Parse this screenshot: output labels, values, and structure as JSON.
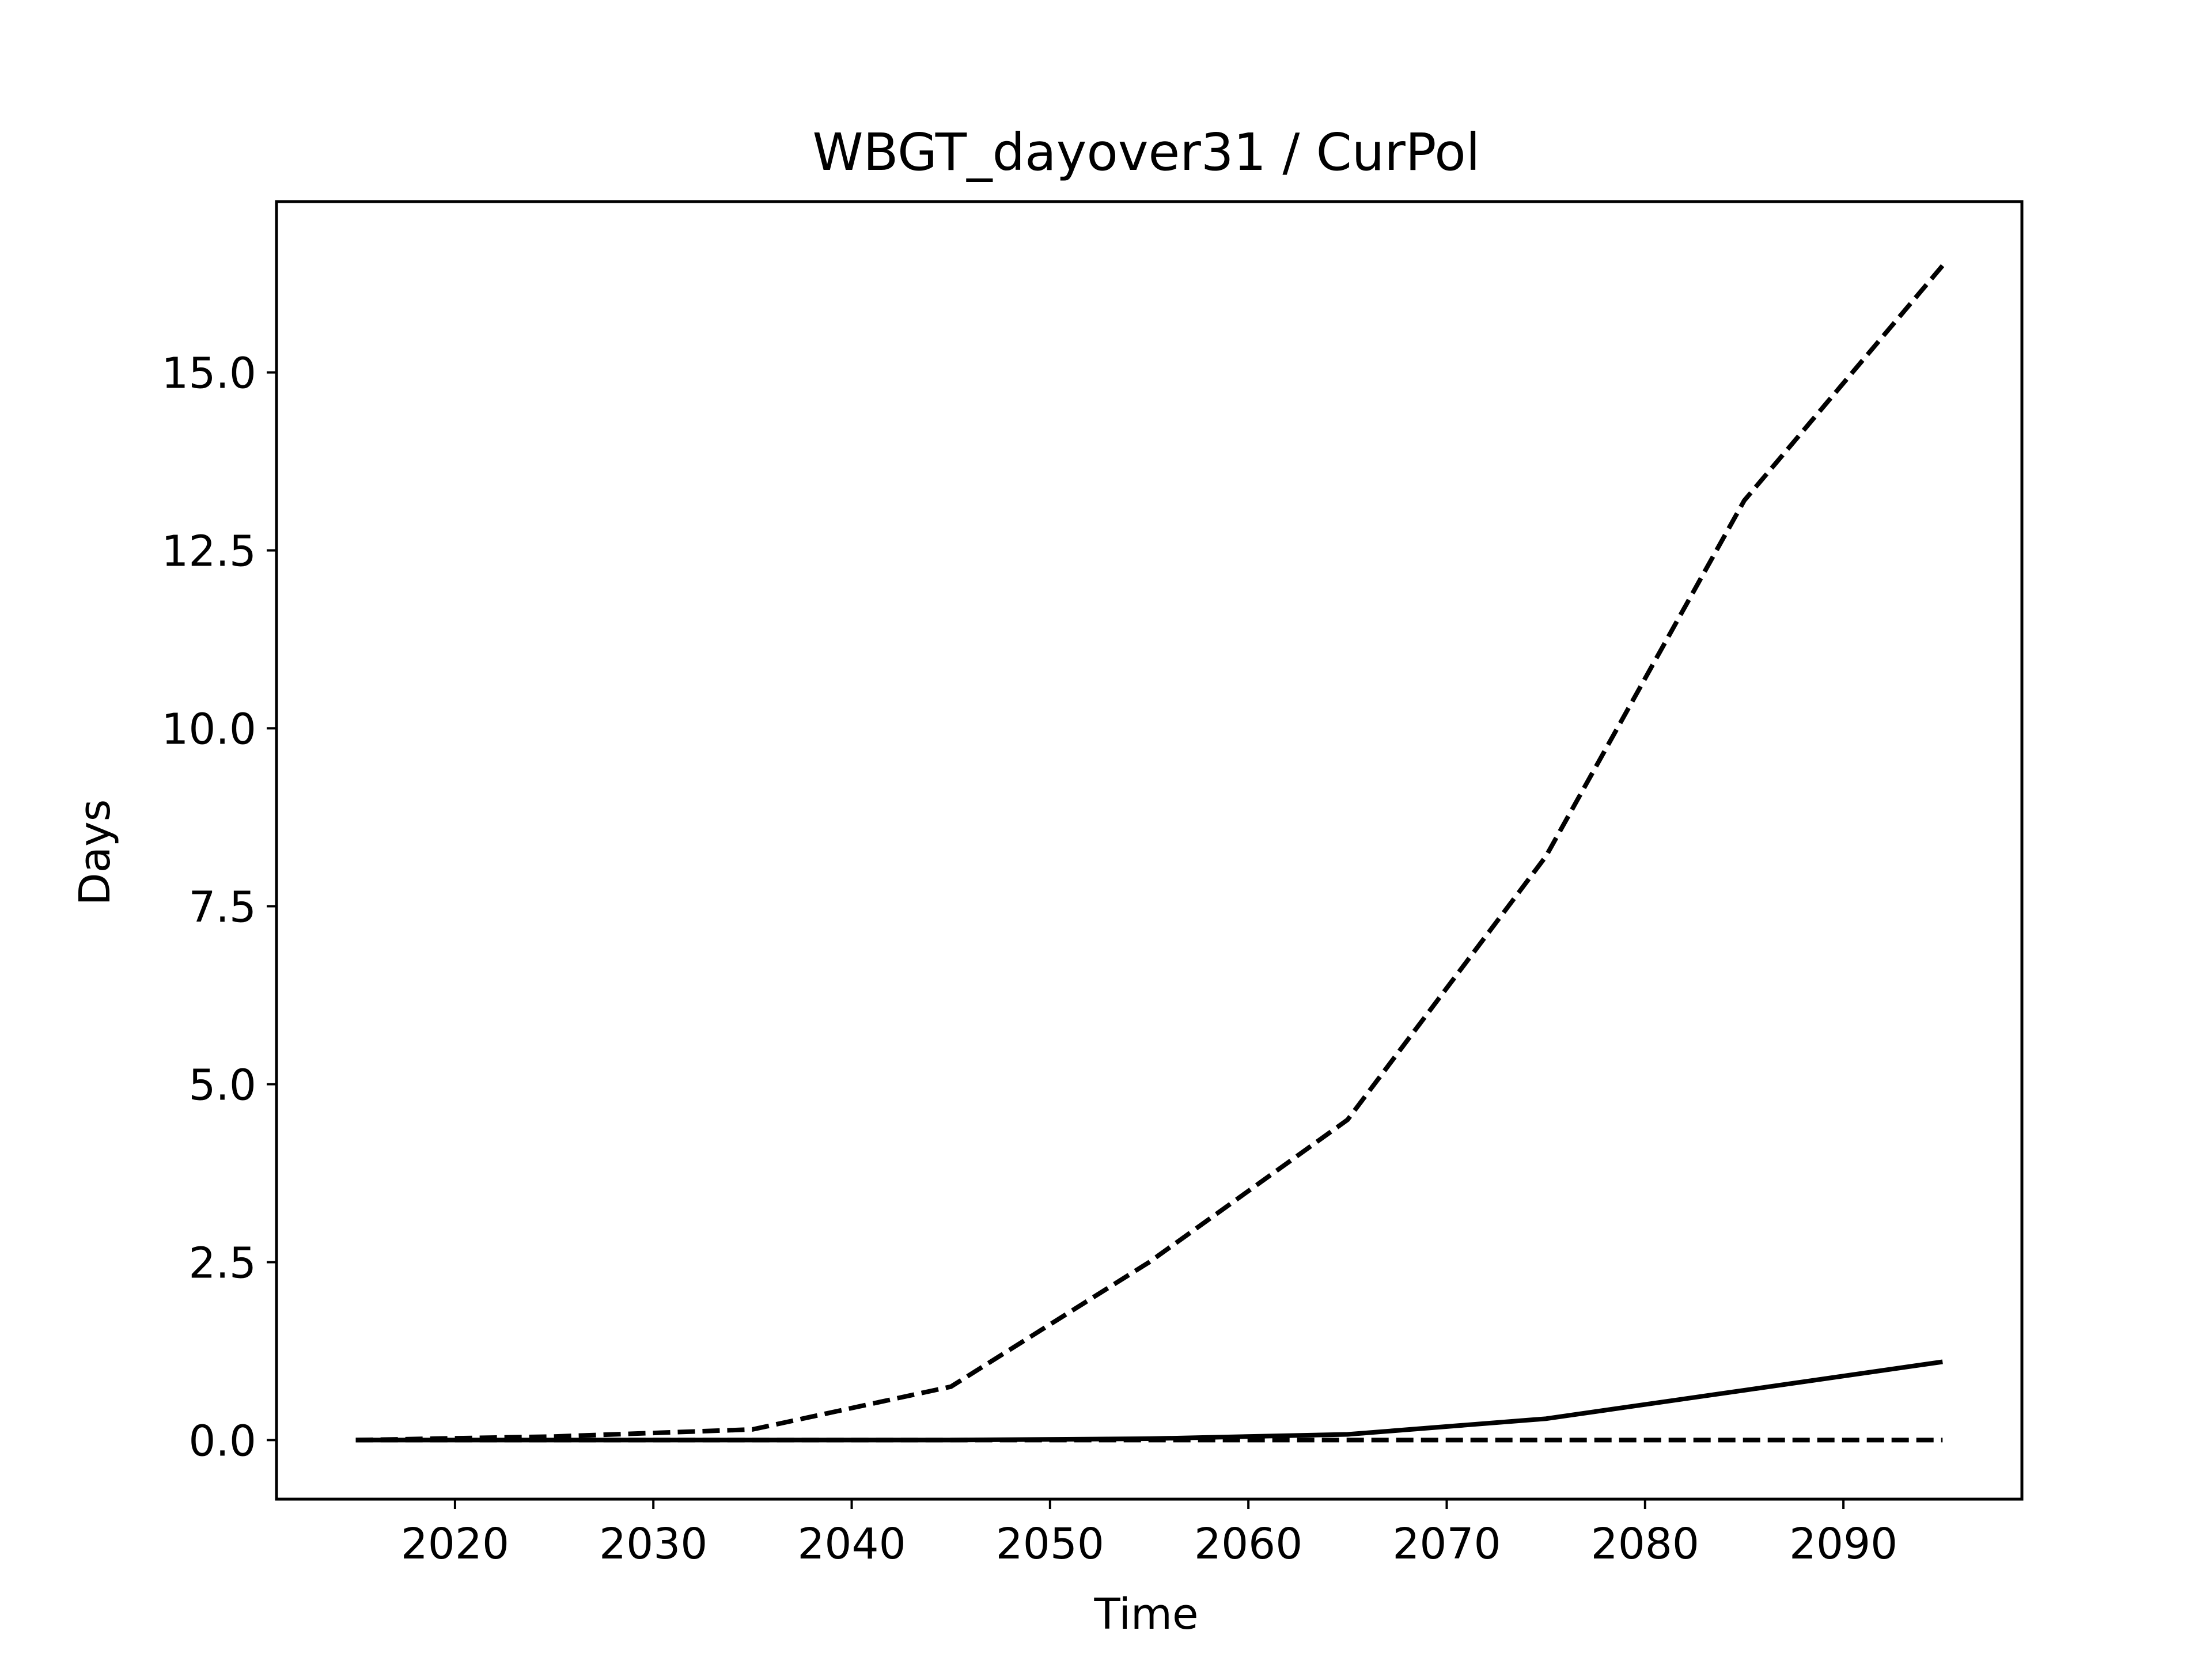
{
  "chart_data": {
    "type": "line",
    "title": "WBGT_dayover31 / CurPol",
    "xlabel": "Time",
    "ylabel": "Days",
    "xlim": [
      2011,
      2099
    ],
    "ylim": [
      -0.83,
      17.4
    ],
    "x_ticks": [
      2020,
      2030,
      2040,
      2050,
      2060,
      2070,
      2080,
      2090
    ],
    "y_ticks": [
      0.0,
      2.5,
      5.0,
      7.5,
      10.0,
      12.5,
      15.0
    ],
    "y_tick_labels": [
      "0.0",
      "2.5",
      "5.0",
      "7.5",
      "10.0",
      "12.5",
      "15.0"
    ],
    "grid": false,
    "legend": "none",
    "x": [
      2015,
      2025,
      2035,
      2045,
      2055,
      2065,
      2075,
      2085,
      2095
    ],
    "series": [
      {
        "style": "dashed",
        "color": "#000000",
        "values": [
          0.0,
          0.05,
          0.15,
          0.75,
          2.5,
          4.5,
          8.2,
          13.2,
          16.5
        ]
      },
      {
        "style": "solid",
        "color": "#000000",
        "values": [
          0.0,
          0.0,
          0.0,
          0.0,
          0.02,
          0.08,
          0.3,
          0.7,
          1.1
        ]
      },
      {
        "style": "dashed",
        "color": "#000000",
        "values": [
          0.0,
          0.0,
          0.0,
          0.0,
          0.0,
          0.0,
          0.0,
          0.0,
          0.0
        ]
      }
    ]
  }
}
